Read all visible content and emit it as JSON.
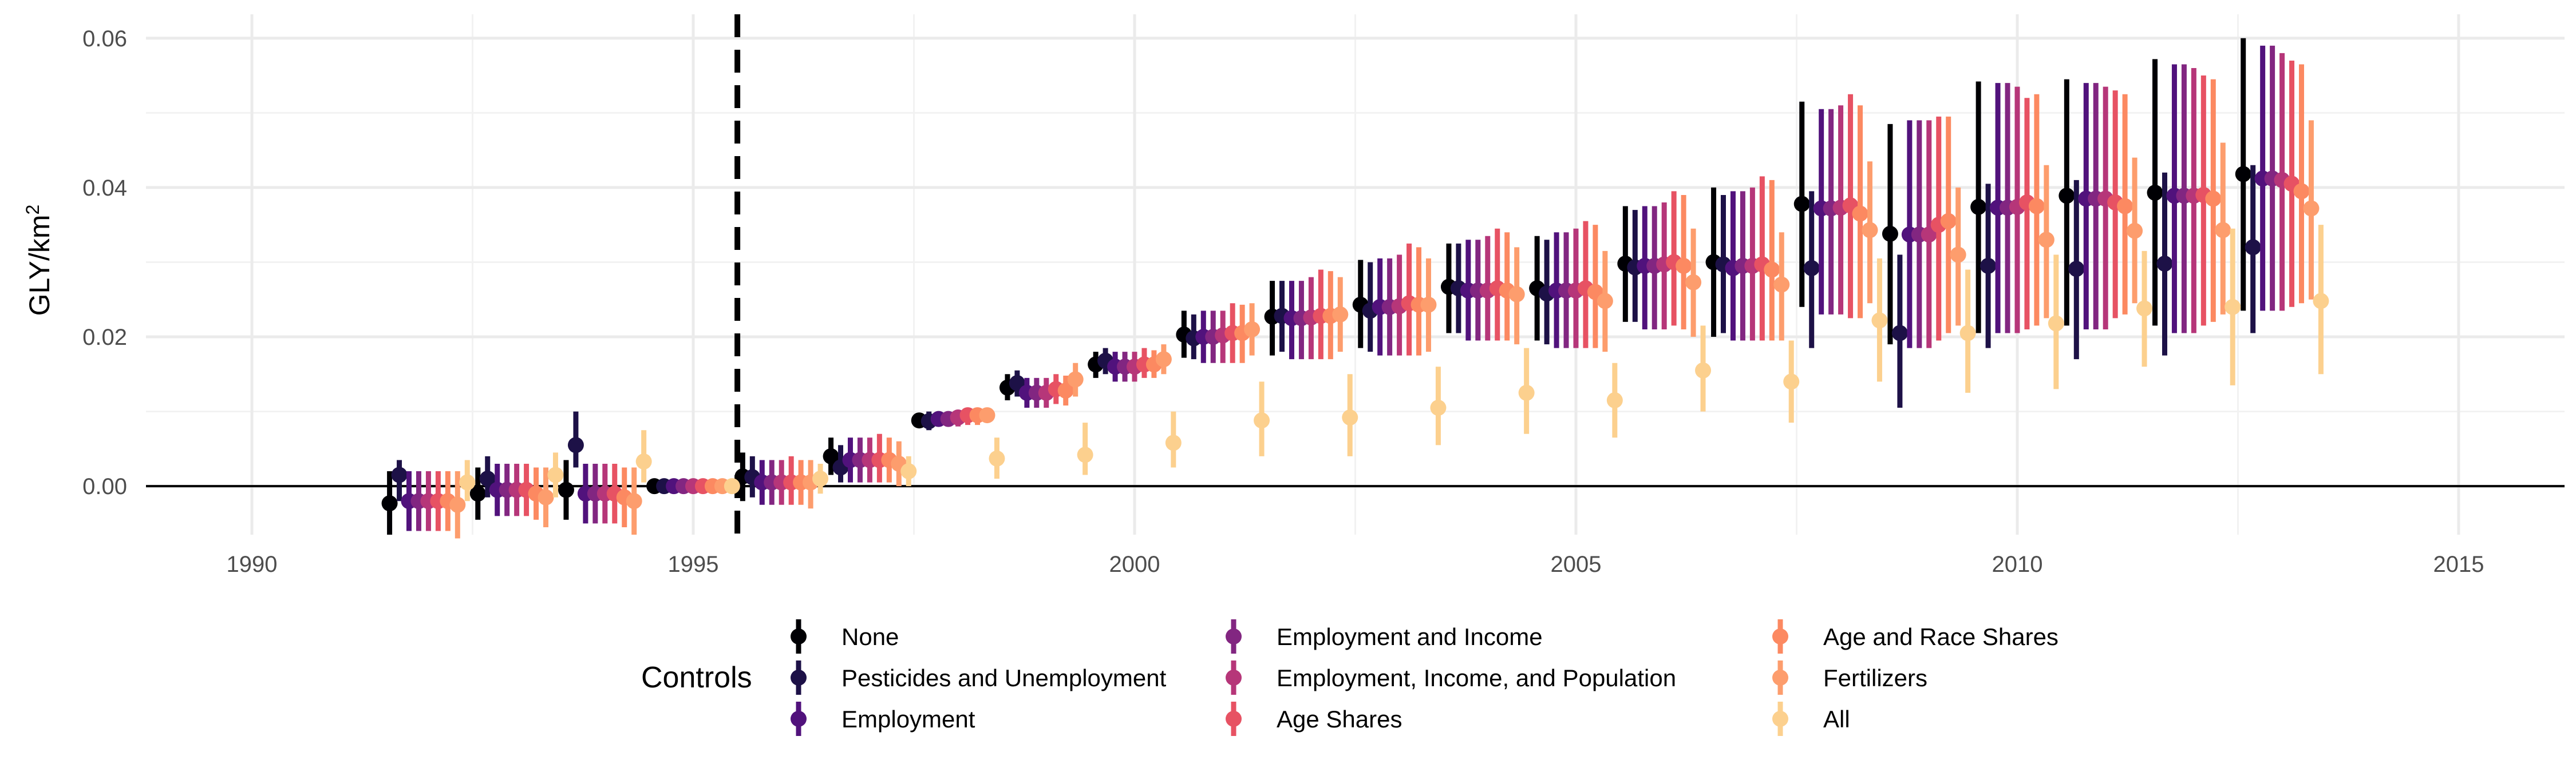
{
  "chart_data": {
    "type": "scatter",
    "subtype": "point-range (coefficient estimates with confidence intervals)",
    "title": "",
    "xlabel": "",
    "ylabel": "GLY/km",
    "ylabel_superscript": "2",
    "xlim": [
      1988.8,
      2016.2
    ],
    "ylim": [
      -0.0065,
      0.0632
    ],
    "x_ticks": [
      1990,
      1995,
      2000,
      2005,
      2010,
      2015
    ],
    "x_tick_labels": [
      "1990",
      "1995",
      "2000",
      "2005",
      "2010",
      "2015"
    ],
    "y_ticks": [
      0.0,
      0.02,
      0.04,
      0.06
    ],
    "y_tick_labels": [
      "0.00",
      "0.02",
      "0.04",
      "0.06"
    ],
    "grid": true,
    "reference_hline": 0,
    "reference_vline": 1995.5,
    "legend_title": "Controls",
    "legend_position": "bottom",
    "years": [
      1992,
      1993,
      1994,
      1995,
      1996,
      1997,
      1998,
      1999,
      2000,
      2001,
      2002,
      2003,
      2004,
      2005,
      2006,
      2007,
      2008,
      2009,
      2010,
      2011,
      2012,
      2013
    ],
    "series": [
      {
        "name": "None",
        "color": "#000004",
        "values": [
          -0.0023,
          -0.001,
          -0.0005,
          0,
          0.0013,
          0.004,
          0.0088,
          0.0132,
          0.0163,
          0.0203,
          0.0227,
          0.0243,
          0.0267,
          0.0265,
          0.0298,
          0.03,
          0.0378,
          0.0338,
          0.0374,
          0.0389,
          0.0393,
          0.0418
        ],
        "lower": [
          -0.0065,
          -0.0045,
          -0.0045,
          0,
          -0.002,
          0.0015,
          0.0078,
          0.0115,
          0.0145,
          0.0172,
          0.0175,
          0.0185,
          0.0205,
          0.0195,
          0.022,
          0.02,
          0.024,
          0.019,
          0.0205,
          0.0215,
          0.0215,
          0.0235
        ],
        "upper": [
          0.002,
          0.0025,
          0.0035,
          0,
          0.0045,
          0.0065,
          0.0098,
          0.015,
          0.018,
          0.0235,
          0.0275,
          0.0303,
          0.0325,
          0.0335,
          0.0375,
          0.04,
          0.0515,
          0.0485,
          0.0542,
          0.0545,
          0.0572,
          0.06
        ]
      },
      {
        "name": "Pesticides and Unemployment",
        "color": "#1d1147",
        "values": [
          0.0015,
          0.001,
          0.0055,
          0,
          0.0012,
          0.0025,
          0.0087,
          0.0138,
          0.0168,
          0.0198,
          0.0228,
          0.0235,
          0.0265,
          0.0258,
          0.0293,
          0.0297,
          0.0292,
          0.0205,
          0.0295,
          0.0291,
          0.0298,
          0.032
        ],
        "lower": [
          -0.002,
          -0.0015,
          0.0025,
          0,
          -0.0015,
          0.0005,
          0.0075,
          0.012,
          0.015,
          0.017,
          0.018,
          0.018,
          0.0205,
          0.019,
          0.022,
          0.0205,
          0.0185,
          0.0105,
          0.0185,
          0.017,
          0.0175,
          0.0205
        ],
        "upper": [
          0.0035,
          0.004,
          0.01,
          0,
          0.004,
          0.0055,
          0.01,
          0.0155,
          0.0185,
          0.023,
          0.0275,
          0.03,
          0.0325,
          0.033,
          0.037,
          0.039,
          0.0395,
          0.031,
          0.0405,
          0.041,
          0.042,
          0.043
        ]
      },
      {
        "name": "Employment",
        "color": "#51127c",
        "values": [
          -0.002,
          -0.0005,
          -0.001,
          0,
          0.0005,
          0.0035,
          0.009,
          0.0125,
          0.016,
          0.02,
          0.0225,
          0.024,
          0.0262,
          0.0262,
          0.0295,
          0.0292,
          0.0372,
          0.0337,
          0.0373,
          0.0385,
          0.0389,
          0.0412
        ],
        "lower": [
          -0.006,
          -0.004,
          -0.005,
          0,
          -0.0025,
          0.0005,
          0.008,
          0.0105,
          0.014,
          0.0165,
          0.017,
          0.0175,
          0.0195,
          0.0185,
          0.021,
          0.0195,
          0.023,
          0.0185,
          0.0205,
          0.021,
          0.0205,
          0.0235
        ],
        "upper": [
          0.002,
          0.003,
          0.003,
          0,
          0.0035,
          0.0065,
          0.01,
          0.0145,
          0.018,
          0.0235,
          0.0275,
          0.0305,
          0.033,
          0.034,
          0.0375,
          0.0395,
          0.0505,
          0.049,
          0.054,
          0.054,
          0.0565,
          0.059
        ]
      },
      {
        "name": "Employment and Income",
        "color": "#822681",
        "values": [
          -0.002,
          -0.0005,
          -0.001,
          0,
          0.0005,
          0.0035,
          0.009,
          0.0125,
          0.016,
          0.02,
          0.0225,
          0.024,
          0.0262,
          0.0262,
          0.0295,
          0.0295,
          0.0372,
          0.0337,
          0.0373,
          0.0385,
          0.0389,
          0.0412
        ],
        "lower": [
          -0.006,
          -0.004,
          -0.005,
          0,
          -0.0025,
          0.0005,
          0.008,
          0.0105,
          0.014,
          0.0165,
          0.017,
          0.0175,
          0.0195,
          0.0185,
          0.021,
          0.0195,
          0.023,
          0.0185,
          0.0205,
          0.021,
          0.0205,
          0.0235
        ],
        "upper": [
          0.002,
          0.003,
          0.003,
          0,
          0.0035,
          0.0065,
          0.01,
          0.0145,
          0.018,
          0.0235,
          0.0275,
          0.0305,
          0.033,
          0.034,
          0.0375,
          0.0395,
          0.0505,
          0.049,
          0.054,
          0.054,
          0.0565,
          0.059
        ]
      },
      {
        "name": "Employment, Income, and Population",
        "color": "#b63679",
        "values": [
          -0.002,
          -0.0005,
          -0.001,
          0,
          0.0005,
          0.0035,
          0.0092,
          0.0125,
          0.016,
          0.0202,
          0.0226,
          0.0241,
          0.0262,
          0.0262,
          0.0297,
          0.0295,
          0.0373,
          0.0337,
          0.0374,
          0.0385,
          0.0389,
          0.041
        ],
        "lower": [
          -0.006,
          -0.004,
          -0.005,
          0,
          -0.0025,
          0.0005,
          0.008,
          0.0105,
          0.014,
          0.0165,
          0.017,
          0.0175,
          0.0195,
          0.0185,
          0.021,
          0.0195,
          0.023,
          0.0185,
          0.0205,
          0.021,
          0.0205,
          0.0235
        ],
        "upper": [
          0.002,
          0.003,
          0.003,
          0,
          0.0035,
          0.0065,
          0.01,
          0.0145,
          0.018,
          0.0235,
          0.028,
          0.031,
          0.0335,
          0.0345,
          0.038,
          0.04,
          0.051,
          0.049,
          0.0535,
          0.0535,
          0.056,
          0.058
        ]
      },
      {
        "name": "Age Shares",
        "color": "#e75263",
        "values": [
          -0.002,
          -0.0005,
          -0.001,
          0,
          0.0005,
          0.0035,
          0.0095,
          0.013,
          0.0163,
          0.0205,
          0.0228,
          0.0245,
          0.0265,
          0.0265,
          0.03,
          0.0297,
          0.0376,
          0.035,
          0.038,
          0.038,
          0.039,
          0.0405
        ],
        "lower": [
          -0.006,
          -0.004,
          -0.005,
          0,
          -0.0025,
          0.0005,
          0.0082,
          0.011,
          0.0145,
          0.0165,
          0.017,
          0.0175,
          0.0195,
          0.0185,
          0.0215,
          0.0195,
          0.0225,
          0.0195,
          0.021,
          0.0225,
          0.0215,
          0.024
        ],
        "upper": [
          0.002,
          0.003,
          0.003,
          0,
          0.004,
          0.007,
          0.0105,
          0.015,
          0.0185,
          0.0245,
          0.029,
          0.0325,
          0.0345,
          0.0355,
          0.0395,
          0.0415,
          0.0525,
          0.0495,
          0.052,
          0.053,
          0.055,
          0.057
        ]
      },
      {
        "name": "Age and Race Shares",
        "color": "#fc8961",
        "values": [
          -0.002,
          -0.001,
          -0.0015,
          0,
          0.0005,
          0.0035,
          0.0095,
          0.0128,
          0.0163,
          0.0205,
          0.0228,
          0.0243,
          0.0262,
          0.026,
          0.0295,
          0.029,
          0.0365,
          0.0355,
          0.0375,
          0.0375,
          0.0385,
          0.0395
        ],
        "lower": [
          -0.006,
          -0.0045,
          -0.0055,
          0,
          -0.0025,
          0.0005,
          0.0082,
          0.0108,
          0.0145,
          0.0165,
          0.017,
          0.0175,
          0.0195,
          0.0185,
          0.021,
          0.0195,
          0.0225,
          0.0205,
          0.0215,
          0.023,
          0.022,
          0.0245
        ],
        "upper": [
          0.002,
          0.0025,
          0.0025,
          0,
          0.0035,
          0.0065,
          0.0105,
          0.0148,
          0.0182,
          0.0243,
          0.0288,
          0.032,
          0.034,
          0.035,
          0.039,
          0.041,
          0.051,
          0.0495,
          0.0525,
          0.0525,
          0.0545,
          0.0565
        ]
      },
      {
        "name": "Fertilizers",
        "color": "#fd9d6d",
        "values": [
          -0.0025,
          -0.0015,
          -0.002,
          0,
          0.0005,
          0.003,
          0.0095,
          0.0143,
          0.017,
          0.021,
          0.023,
          0.0243,
          0.0257,
          0.0248,
          0.0273,
          0.027,
          0.0343,
          0.031,
          0.033,
          0.0342,
          0.0343,
          0.0372
        ],
        "lower": [
          -0.007,
          -0.0055,
          -0.0065,
          0,
          -0.003,
          0.0,
          0.0085,
          0.012,
          0.015,
          0.0175,
          0.018,
          0.018,
          0.019,
          0.018,
          0.02,
          0.0195,
          0.0245,
          0.0215,
          0.0225,
          0.0245,
          0.023,
          0.025
        ],
        "upper": [
          0.002,
          0.0025,
          0.0025,
          0,
          0.0035,
          0.006,
          0.0105,
          0.0165,
          0.019,
          0.0245,
          0.028,
          0.0305,
          0.032,
          0.0315,
          0.0345,
          0.034,
          0.0435,
          0.04,
          0.043,
          0.044,
          0.046,
          0.049
        ]
      },
      {
        "name": "All",
        "color": "#fcd08e",
        "values": [
          0.0005,
          0.0015,
          0.0033,
          0,
          0.001,
          0.002,
          0.0037,
          0.0042,
          0.0058,
          0.0088,
          0.0092,
          0.0105,
          0.0125,
          0.0115,
          0.0155,
          0.014,
          0.0222,
          0.0205,
          0.0218,
          0.0238,
          0.024,
          0.0248
        ],
        "lower": [
          -0.002,
          -0.0015,
          0.0005,
          0,
          -0.001,
          0.0,
          0.001,
          0.0015,
          0.0025,
          0.004,
          0.004,
          0.0055,
          0.007,
          0.0065,
          0.01,
          0.0085,
          0.014,
          0.0125,
          0.013,
          0.016,
          0.0135,
          0.015
        ],
        "upper": [
          0.0035,
          0.0045,
          0.0075,
          0,
          0.003,
          0.004,
          0.0065,
          0.0085,
          0.01,
          0.014,
          0.015,
          0.016,
          0.0185,
          0.0165,
          0.0215,
          0.0195,
          0.0305,
          0.029,
          0.031,
          0.0315,
          0.0345,
          0.035
        ]
      }
    ]
  }
}
